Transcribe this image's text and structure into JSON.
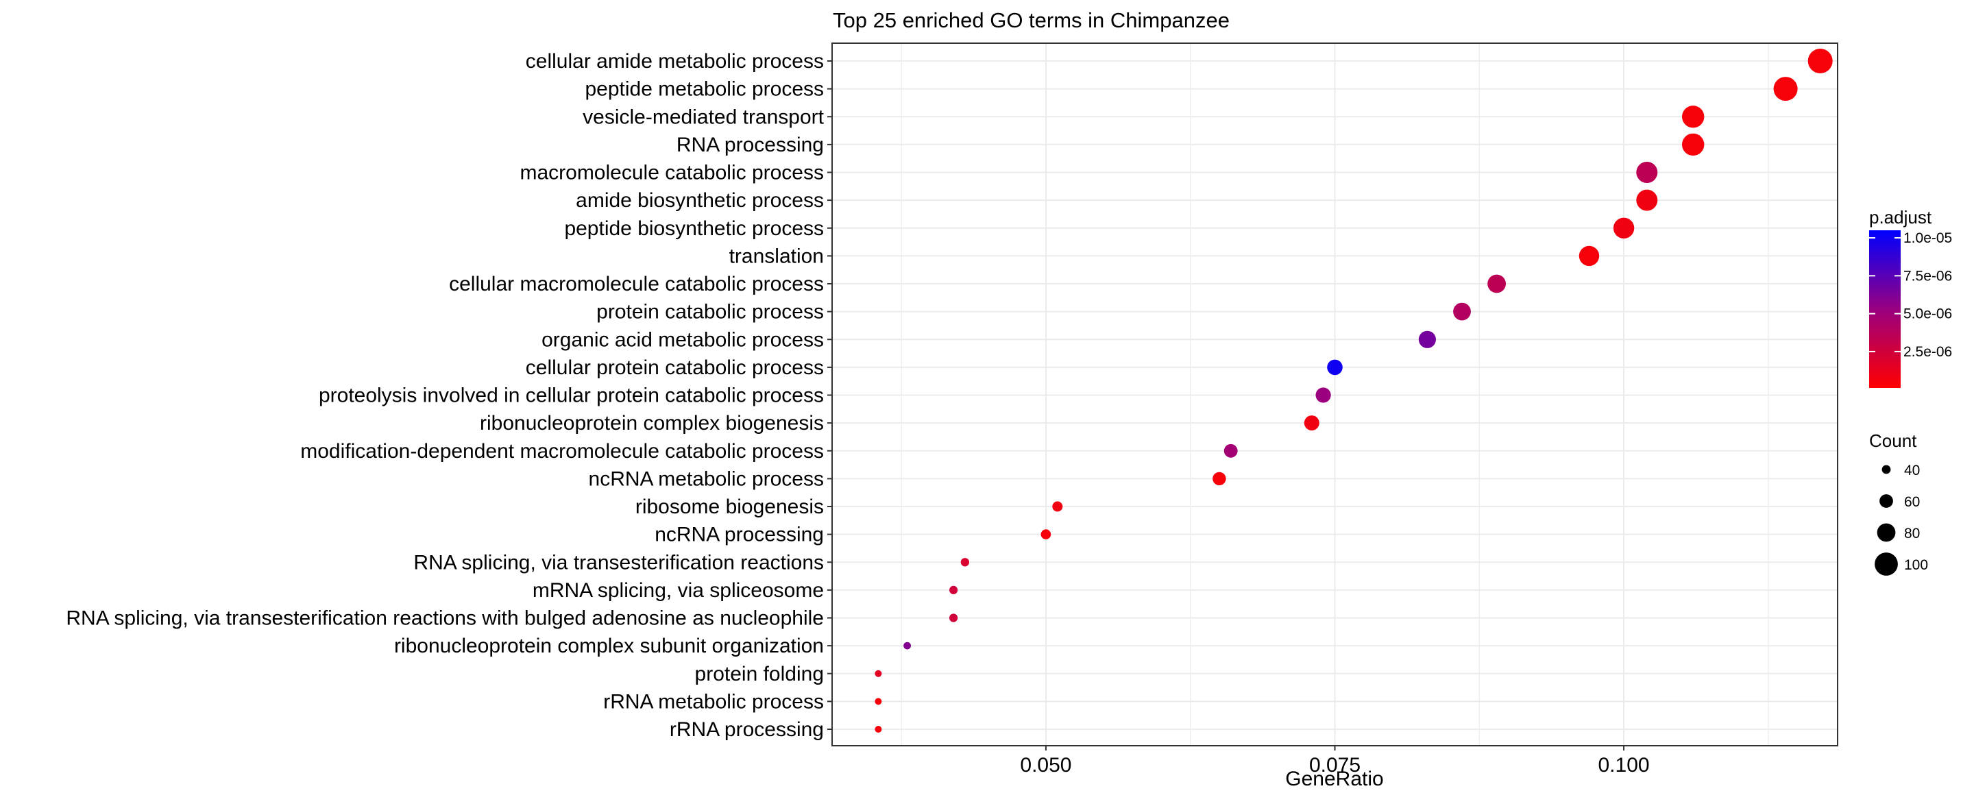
{
  "chart_data": {
    "type": "scatter",
    "title": "Top 25 enriched GO terms in Chimpanzee",
    "xlabel": "GeneRatio",
    "ylabel": "",
    "xlim": [
      0.0315,
      0.1185
    ],
    "x_ticks": [
      {
        "value": 0.05,
        "label": "0.050"
      },
      {
        "value": 0.075,
        "label": "0.075"
      },
      {
        "value": 0.1,
        "label": "0.100"
      }
    ],
    "grid": true,
    "points": [
      {
        "term": "cellular amide metabolic process",
        "gene_ratio": 0.117,
        "count": 106,
        "p_adjust": 5e-07
      },
      {
        "term": "peptide metabolic process",
        "gene_ratio": 0.114,
        "count": 103,
        "p_adjust": 5e-07
      },
      {
        "term": "vesicle-mediated transport",
        "gene_ratio": 0.106,
        "count": 96,
        "p_adjust": 5e-07
      },
      {
        "term": "RNA processing",
        "gene_ratio": 0.106,
        "count": 96,
        "p_adjust": 5e-07
      },
      {
        "term": "macromolecule catabolic process",
        "gene_ratio": 0.102,
        "count": 92,
        "p_adjust": 3.5e-06
      },
      {
        "term": "amide biosynthetic process",
        "gene_ratio": 0.102,
        "count": 92,
        "p_adjust": 8e-07
      },
      {
        "term": "peptide biosynthetic process",
        "gene_ratio": 0.1,
        "count": 90,
        "p_adjust": 8e-07
      },
      {
        "term": "translation",
        "gene_ratio": 0.097,
        "count": 87,
        "p_adjust": 5e-07
      },
      {
        "term": "cellular macromolecule catabolic process",
        "gene_ratio": 0.089,
        "count": 80,
        "p_adjust": 3.5e-06
      },
      {
        "term": "protein catabolic process",
        "gene_ratio": 0.086,
        "count": 77,
        "p_adjust": 4e-06
      },
      {
        "term": "organic acid metabolic process",
        "gene_ratio": 0.083,
        "count": 75,
        "p_adjust": 6.5e-06
      },
      {
        "term": "cellular protein catabolic process",
        "gene_ratio": 0.075,
        "count": 68,
        "p_adjust": 1e-05
      },
      {
        "term": "proteolysis involved in cellular protein catabolic process",
        "gene_ratio": 0.074,
        "count": 67,
        "p_adjust": 5.2e-06
      },
      {
        "term": "ribonucleoprotein complex biogenesis",
        "gene_ratio": 0.073,
        "count": 66,
        "p_adjust": 8e-07
      },
      {
        "term": "modification-dependent macromolecule catabolic process",
        "gene_ratio": 0.066,
        "count": 60,
        "p_adjust": 4.8e-06
      },
      {
        "term": "ncRNA metabolic process",
        "gene_ratio": 0.065,
        "count": 59,
        "p_adjust": 5e-07
      },
      {
        "term": "ribosome biogenesis",
        "gene_ratio": 0.051,
        "count": 46,
        "p_adjust": 8e-07
      },
      {
        "term": "ncRNA processing",
        "gene_ratio": 0.05,
        "count": 45,
        "p_adjust": 5e-07
      },
      {
        "term": "RNA splicing, via transesterification reactions",
        "gene_ratio": 0.043,
        "count": 39,
        "p_adjust": 2e-06
      },
      {
        "term": "mRNA splicing, via spliceosome",
        "gene_ratio": 0.042,
        "count": 38,
        "p_adjust": 2.5e-06
      },
      {
        "term": "RNA splicing, via transesterification reactions with bulged adenosine as nucleophile",
        "gene_ratio": 0.042,
        "count": 38,
        "p_adjust": 2.5e-06
      },
      {
        "term": "ribonucleoprotein complex subunit organization",
        "gene_ratio": 0.038,
        "count": 34,
        "p_adjust": 6e-06
      },
      {
        "term": "protein folding",
        "gene_ratio": 0.0355,
        "count": 32,
        "p_adjust": 1.5e-06
      },
      {
        "term": "rRNA metabolic process",
        "gene_ratio": 0.0355,
        "count": 32,
        "p_adjust": 5e-07
      },
      {
        "term": "rRNA processing",
        "gene_ratio": 0.0355,
        "count": 32,
        "p_adjust": 5e-07
      }
    ],
    "color_legend": {
      "title": "p.adjust",
      "range": [
        1e-07,
        1.05e-05
      ],
      "low_color": "#FF0000",
      "high_color": "#0000FF",
      "ticks": [
        {
          "value": 1e-05,
          "label": "1.0e-05"
        },
        {
          "value": 7.5e-06,
          "label": "7.5e-06"
        },
        {
          "value": 5e-06,
          "label": "5.0e-06"
        },
        {
          "value": 2.5e-06,
          "label": "2.5e-06"
        }
      ]
    },
    "size_legend": {
      "title": "Count",
      "range": [
        32,
        106
      ],
      "entries": [
        {
          "value": 40,
          "label": "40"
        },
        {
          "value": 60,
          "label": "60"
        },
        {
          "value": 80,
          "label": "80"
        },
        {
          "value": 100,
          "label": "100"
        }
      ]
    },
    "colors": {
      "panel_border": "#333333",
      "grid": "#EBEBEB",
      "legend_key": "#000000"
    }
  }
}
